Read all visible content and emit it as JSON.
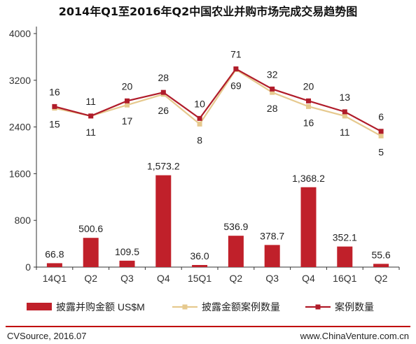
{
  "title": "2014年Q1至2016年Q2中国农业并购市场完成交易趋势图",
  "source": "CVSource, 2016.07",
  "website": "www.ChinaVenture.com.cn",
  "colors": {
    "bar": "#c0202a",
    "deal_line": "#b01c2a",
    "disclosed_line": "#e6c98e",
    "axis": "#333333",
    "footer_line": "#c00000"
  },
  "chart_data": {
    "type": "bar",
    "categories": [
      "14Q1",
      "Q2",
      "Q3",
      "Q4",
      "15Q1",
      "Q2",
      "Q3",
      "Q4",
      "16Q1",
      "Q2"
    ],
    "y_ticks": [
      "0",
      "800",
      "1600",
      "2400",
      "3200",
      "4000"
    ],
    "ylim": [
      0,
      4000
    ],
    "grid": false,
    "legend_position": "bottom",
    "series": [
      {
        "name": "披露并购金额 US$M",
        "type": "bar",
        "values": [
          66.8,
          500.6,
          109.5,
          1573.2,
          36.0,
          536.9,
          378.7,
          1368.2,
          352.1,
          55.6
        ],
        "labels": [
          "66.8",
          "500.6",
          "109.5",
          "1,573.2",
          "36.0",
          "536.9",
          "378.7",
          "1,368.2",
          "352.1",
          "55.6"
        ]
      },
      {
        "name": "披露金额案例数量",
        "type": "line",
        "values": [
          15,
          11,
          17,
          26,
          8,
          69,
          28,
          16,
          11,
          5
        ],
        "labels": [
          "15",
          "11",
          "17",
          "26",
          "8",
          "69",
          "28",
          "16",
          "11",
          "5"
        ]
      },
      {
        "name": "案例数量",
        "type": "line",
        "values": [
          16,
          11,
          20,
          28,
          10,
          71,
          32,
          20,
          13,
          6
        ],
        "labels": [
          "16",
          "11",
          "20",
          "28",
          "10",
          "71",
          "32",
          "20",
          "13",
          "6"
        ]
      }
    ]
  }
}
